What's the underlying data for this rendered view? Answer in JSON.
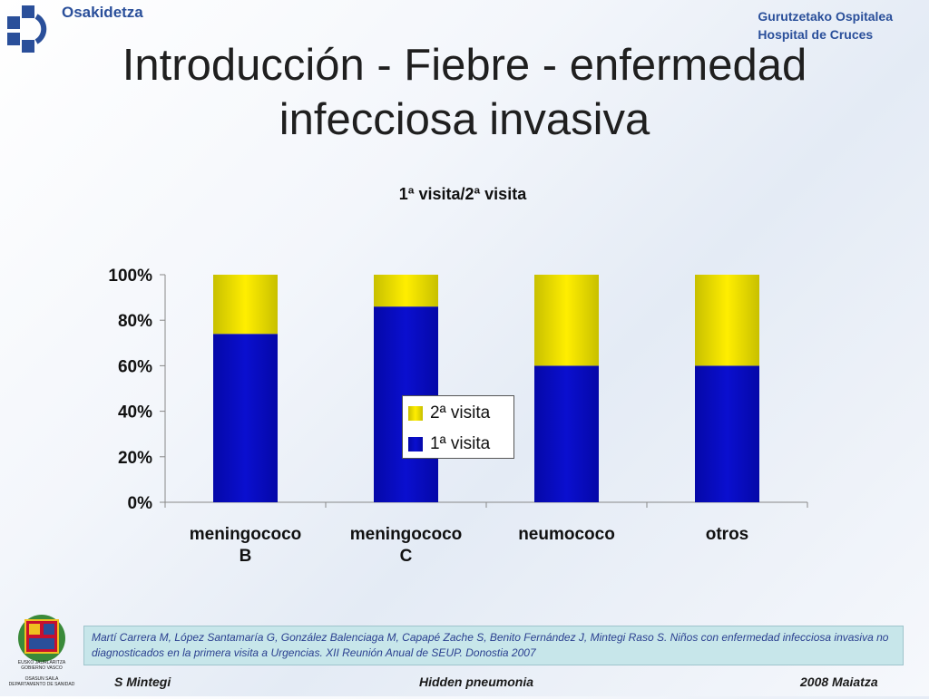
{
  "header": {
    "logo_text": "Osakidetza",
    "hospital_line1": "Gurutzetako Ospitalea",
    "hospital_line2": "Hospital de Cruces"
  },
  "slide": {
    "title_line1": "Introducción - Fiebre - enfermedad",
    "title_line2": "infecciosa invasiva"
  },
  "colors": {
    "primera": "#0a0fcf",
    "segunda": "#ffee00",
    "brand": "#2a4f9a"
  },
  "chart_data": {
    "type": "bar",
    "stacked": true,
    "title": "1ª visita/2ª visita",
    "categories": [
      "meningococo\nB",
      "meningococo\nC",
      "neumococo",
      "otros"
    ],
    "series": [
      {
        "name": "1ª visita",
        "values": [
          74,
          86,
          60,
          60
        ]
      },
      {
        "name": "2ª visita",
        "values": [
          26,
          14,
          40,
          40
        ]
      }
    ],
    "ylim": [
      0,
      100
    ],
    "yticks": [
      "0%",
      "20%",
      "40%",
      "60%",
      "80%",
      "100%"
    ],
    "legend_position": "center",
    "grid": false
  },
  "reference": "Martí Carrera M, López Santamaría G, González Balenciaga M, Capapé Zache S, Benito Fernández J, Mintegi Raso S. Niños con enfermedad infecciosa invasiva no diagnosticados en la primera visita a Urgencias. XII Reunión Anual de SEUP. Donostia 2007",
  "footer": {
    "left": "S Mintegi",
    "center": "Hidden pneumonia",
    "right": "2008 Maiatza"
  },
  "coat_of_arms": {
    "line1": "EUSKO JAURLARITZA",
    "line2": "GOBIERNO VASCO",
    "line3": "OSASUN SAILA",
    "line4": "DEPARTAMENTO DE SANIDAD"
  }
}
